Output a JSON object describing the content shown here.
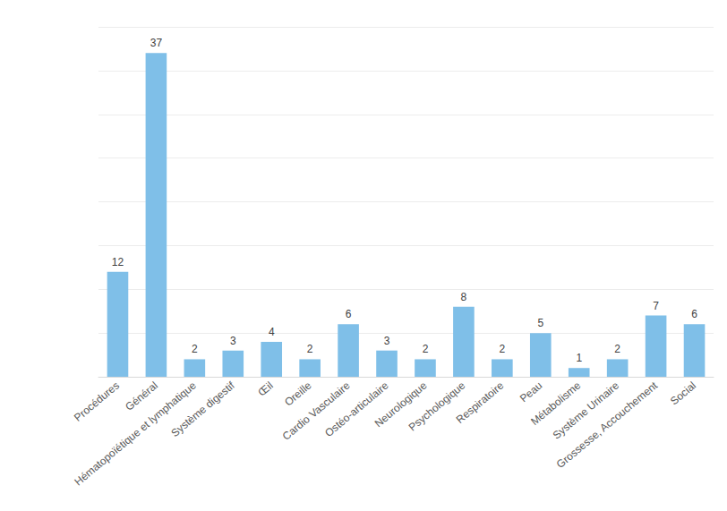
{
  "chart_data": {
    "type": "bar",
    "categories": [
      "Procédures",
      "Général",
      "Hématopoïétique et lymphatique",
      "Système digestif",
      "Œil",
      "Oreille",
      "Cardio Vasculaire",
      "Ostéo-articulaire",
      "Neurologique",
      "Psychologique",
      "Respiratoire",
      "Peau",
      "Métabolisme",
      "Système Urinaire",
      "Grossesse, Accouchement",
      "Social"
    ],
    "values": [
      12,
      37,
      2,
      3,
      4,
      2,
      6,
      3,
      2,
      8,
      2,
      5,
      1,
      2,
      7,
      6
    ],
    "color": "#7fbfe8",
    "ylim": [
      0,
      40
    ],
    "yticks": [
      0,
      5,
      10,
      15,
      20,
      25,
      30,
      35,
      40
    ],
    "grid": true,
    "data_labels": true,
    "tick_labels": "x"
  }
}
